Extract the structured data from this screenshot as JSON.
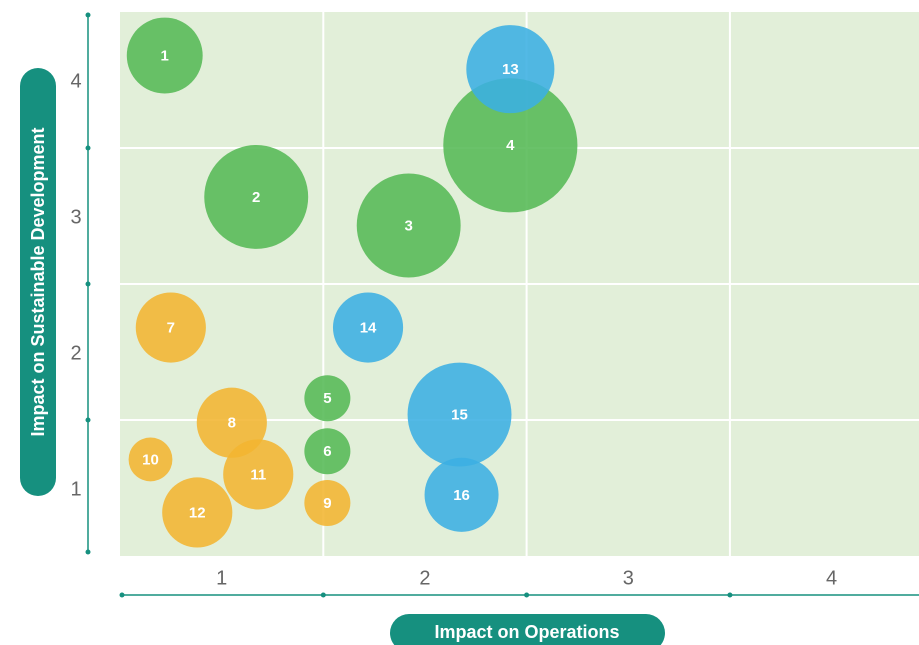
{
  "chart_data": {
    "type": "bubble",
    "x_label": "Impact on Operations",
    "y_label": "Impact on Sustainable Development",
    "xlim": [
      0.5,
      4.43
    ],
    "ylim": [
      0.5,
      4.5
    ],
    "xticks": [
      1,
      2,
      3,
      4
    ],
    "yticks": [
      1,
      2,
      3,
      4
    ],
    "xgrid": [
      1.5,
      2.5,
      3.5
    ],
    "ygrid": [
      1.5,
      2.5,
      3.5
    ],
    "background": "#e2efd9",
    "axis_color": "#16907f",
    "series": [
      {
        "color": "#55b955",
        "labels": [
          "1",
          "2",
          "3",
          "4",
          "5",
          "6"
        ],
        "x": [
          0.72,
          1.17,
          1.92,
          2.42,
          1.52,
          1.52
        ],
        "y": [
          4.18,
          3.14,
          2.93,
          3.52,
          1.66,
          1.27
        ],
        "size": [
          14.4,
          27,
          27,
          45,
          5.3,
          5.3
        ]
      },
      {
        "color": "#f2b531",
        "labels": [
          "7",
          "8",
          "9",
          "10",
          "11",
          "12"
        ],
        "x": [
          0.75,
          1.05,
          1.52,
          0.65,
          1.18,
          0.88
        ],
        "y": [
          2.18,
          1.48,
          0.89,
          1.21,
          1.1,
          0.82
        ],
        "size": [
          12.3,
          12.3,
          5.3,
          4.8,
          12.3,
          12.3
        ]
      },
      {
        "color": "#3bafe3",
        "labels": [
          "13",
          "14",
          "15",
          "16"
        ],
        "x": [
          2.42,
          1.72,
          2.17,
          2.18
        ],
        "y": [
          4.08,
          2.18,
          1.54,
          0.95
        ],
        "size": [
          19.4,
          12.3,
          27,
          13.7
        ]
      }
    ]
  }
}
